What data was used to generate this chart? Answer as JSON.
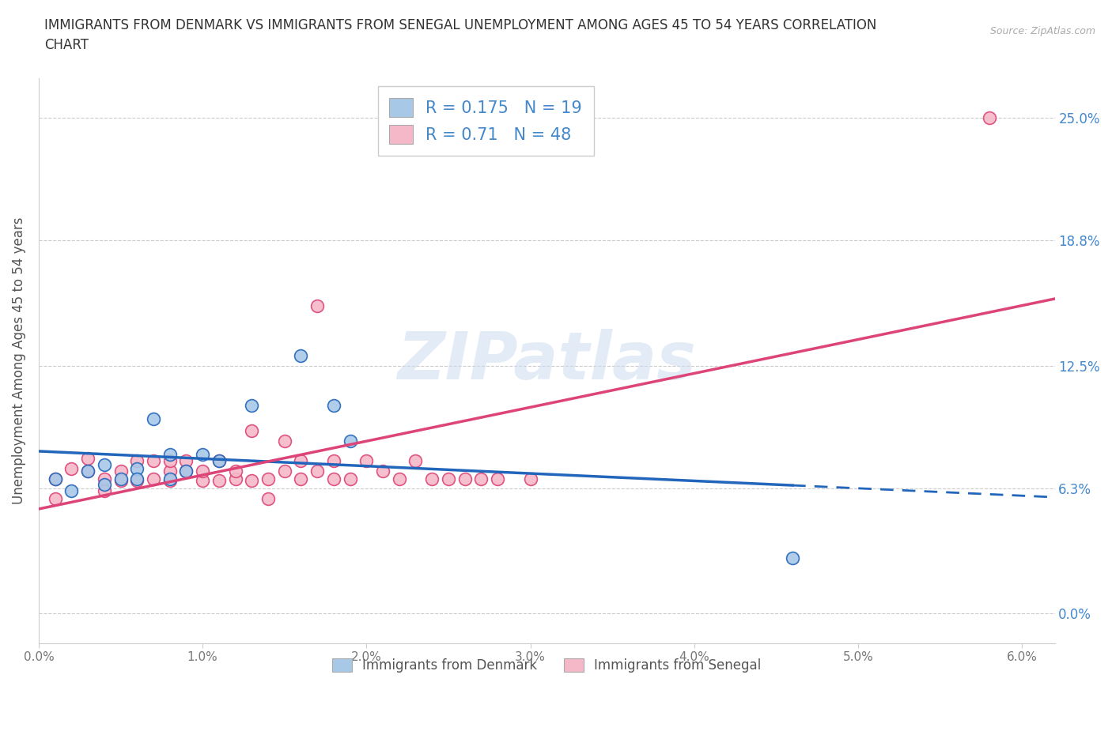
{
  "title": "IMMIGRANTS FROM DENMARK VS IMMIGRANTS FROM SENEGAL UNEMPLOYMENT AMONG AGES 45 TO 54 YEARS CORRELATION\nCHART",
  "source": "Source: ZipAtlas.com",
  "ylabel": "Unemployment Among Ages 45 to 54 years",
  "xlabel": "",
  "xlim": [
    0.0,
    0.062
  ],
  "ylim": [
    -0.015,
    0.27
  ],
  "yticks": [
    0.0,
    0.063,
    0.125,
    0.188,
    0.25
  ],
  "ytick_labels": [
    "0.0%",
    "6.3%",
    "12.5%",
    "18.8%",
    "25.0%"
  ],
  "xticks": [
    0.0,
    0.01,
    0.02,
    0.03,
    0.04,
    0.05,
    0.06
  ],
  "xtick_labels": [
    "0.0%",
    "1.0%",
    "2.0%",
    "3.0%",
    "4.0%",
    "5.0%",
    "6.0%"
  ],
  "denmark_color": "#a8c8e8",
  "senegal_color": "#f5b8c8",
  "denmark_line_color": "#2266bb",
  "senegal_line_color": "#dd4477",
  "R_denmark": 0.175,
  "N_denmark": 19,
  "R_senegal": 0.71,
  "N_senegal": 48,
  "watermark": "ZIPatlas",
  "legend_denmark": "Immigrants from Denmark",
  "legend_senegal": "Immigrants from Senegal",
  "denmark_scatter_x": [
    0.001,
    0.002,
    0.003,
    0.004,
    0.004,
    0.005,
    0.006,
    0.006,
    0.007,
    0.008,
    0.008,
    0.009,
    0.01,
    0.011,
    0.013,
    0.016,
    0.018,
    0.019,
    0.046
  ],
  "denmark_scatter_y": [
    0.068,
    0.062,
    0.072,
    0.065,
    0.075,
    0.068,
    0.073,
    0.068,
    0.098,
    0.08,
    0.068,
    0.072,
    0.08,
    0.077,
    0.105,
    0.13,
    0.105,
    0.087,
    0.028
  ],
  "senegal_scatter_x": [
    0.001,
    0.001,
    0.002,
    0.003,
    0.003,
    0.004,
    0.004,
    0.005,
    0.005,
    0.006,
    0.006,
    0.007,
    0.007,
    0.008,
    0.008,
    0.008,
    0.009,
    0.009,
    0.01,
    0.01,
    0.011,
    0.011,
    0.012,
    0.012,
    0.013,
    0.013,
    0.014,
    0.014,
    0.015,
    0.015,
    0.016,
    0.016,
    0.017,
    0.017,
    0.018,
    0.018,
    0.019,
    0.02,
    0.021,
    0.022,
    0.023,
    0.024,
    0.025,
    0.026,
    0.027,
    0.028,
    0.03,
    0.058
  ],
  "senegal_scatter_y": [
    0.068,
    0.058,
    0.073,
    0.072,
    0.078,
    0.062,
    0.068,
    0.072,
    0.067,
    0.077,
    0.067,
    0.077,
    0.068,
    0.072,
    0.067,
    0.077,
    0.077,
    0.072,
    0.067,
    0.072,
    0.077,
    0.067,
    0.068,
    0.072,
    0.067,
    0.092,
    0.058,
    0.068,
    0.087,
    0.072,
    0.068,
    0.077,
    0.155,
    0.072,
    0.068,
    0.077,
    0.068,
    0.077,
    0.072,
    0.068,
    0.077,
    0.068,
    0.068,
    0.068,
    0.068,
    0.068,
    0.068,
    0.25
  ],
  "grid_color": "#cccccc",
  "title_color": "#333333",
  "axis_label_color": "#555555",
  "tick_color": "#777777",
  "right_tick_color": "#4488cc",
  "denmark_trend_x": [
    0.0,
    0.046,
    0.062
  ],
  "denmark_trend_solid_end": 0.046,
  "senegal_trend_x": [
    0.0,
    0.062
  ]
}
